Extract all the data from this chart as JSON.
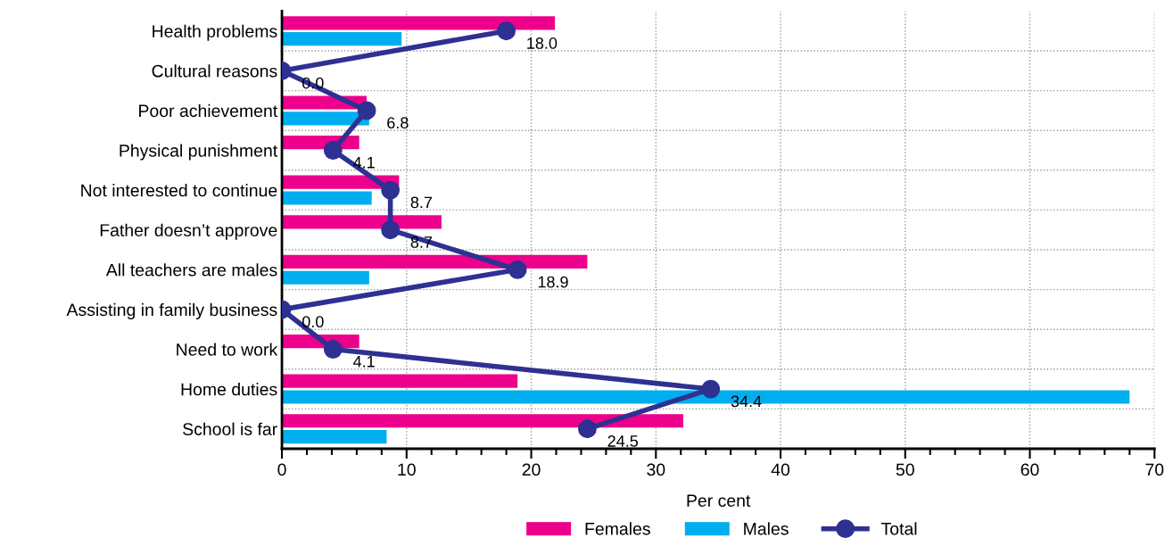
{
  "chart_data": {
    "type": "bar",
    "orientation": "horizontal",
    "xlabel": "Per cent",
    "categories": [
      "Health problems",
      "Cultural reasons",
      "Poor achievement",
      "Physical punishment",
      "Not interested to continue",
      "Father doesn’t approve",
      "All teachers are males",
      "Assisting in family business",
      "Need to work",
      "Home duties",
      "School is far"
    ],
    "series": [
      {
        "name": "Females",
        "color": "#ec008c",
        "values": [
          21.9,
          null,
          6.8,
          6.2,
          9.4,
          12.8,
          24.5,
          null,
          6.2,
          18.9,
          32.2
        ]
      },
      {
        "name": "Males",
        "color": "#00aeef",
        "values": [
          9.6,
          null,
          7.0,
          null,
          7.2,
          null,
          7.0,
          null,
          null,
          68.0,
          8.4
        ]
      },
      {
        "name": "Total",
        "type": "line",
        "color": "#2e3192",
        "marker": "circle",
        "value_labels": [
          "18.0",
          "0.0",
          "6.8",
          "4.1",
          "8.7",
          "8.7",
          "18.9",
          "0.0",
          "4.1",
          "34.4",
          "24.5"
        ],
        "values": [
          18.0,
          0.0,
          6.8,
          4.1,
          8.7,
          8.7,
          18.9,
          0.0,
          4.1,
          34.4,
          24.5
        ]
      }
    ],
    "xlim": [
      0,
      70
    ],
    "xticks": [
      0,
      {
        "value": 2,
        "label": null
      },
      {
        "value": 4,
        "label": null
      },
      {
        "value": 6,
        "label": null
      },
      {
        "value": 8,
        "label": null
      },
      10,
      {
        "value": 12,
        "label": null
      },
      {
        "value": 14,
        "label": null
      },
      {
        "value": 16,
        "label": null
      },
      {
        "value": 18,
        "label": null
      },
      20,
      {
        "value": 22,
        "label": null
      },
      {
        "value": 24,
        "label": null
      },
      {
        "value": 26,
        "label": null
      },
      {
        "value": 28,
        "label": null
      },
      30,
      {
        "value": 32,
        "label": null
      },
      {
        "value": 34,
        "label": null
      },
      {
        "value": 36,
        "label": null
      },
      {
        "value": 38,
        "label": null
      },
      40,
      {
        "value": 42,
        "label": null
      },
      {
        "value": 44,
        "label": null
      },
      {
        "value": 46,
        "label": null
      },
      {
        "value": 48,
        "label": null
      },
      50,
      {
        "value": 52,
        "label": null
      },
      {
        "value": 54,
        "label": null
      },
      {
        "value": 56,
        "label": null
      },
      {
        "value": 58,
        "label": null
      },
      60,
      {
        "value": 62,
        "label": null
      },
      {
        "value": 64,
        "label": null
      },
      {
        "value": 66,
        "label": null
      },
      {
        "value": 68,
        "label": null
      },
      70
    ],
    "grid": true,
    "legend": "bottom"
  }
}
